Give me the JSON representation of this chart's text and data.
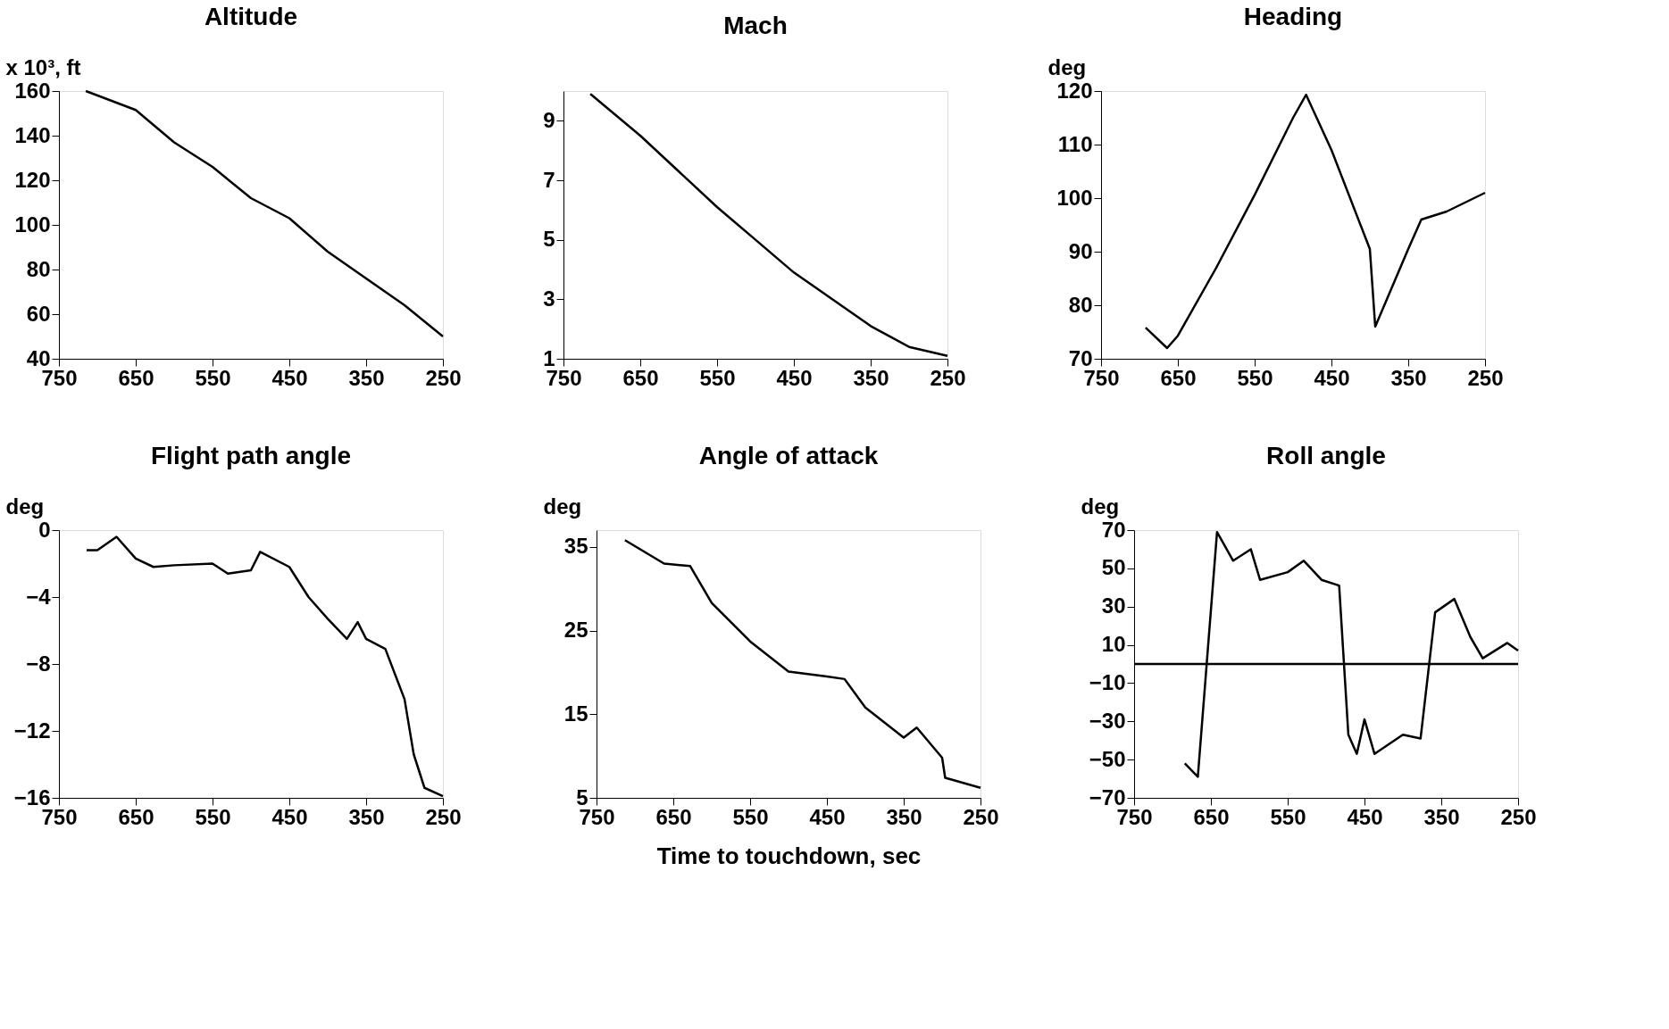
{
  "chart_data": [
    {
      "type": "line",
      "title": "Altitude",
      "ylabel": "x 10³, ft",
      "xlim": [
        750,
        250
      ],
      "xticks": [
        750,
        650,
        550,
        450,
        350,
        250
      ],
      "ylim": [
        40,
        160
      ],
      "yticks": [
        40,
        60,
        80,
        100,
        120,
        140,
        160
      ],
      "grid": false,
      "series": [
        {
          "color": "#000000",
          "x": [
            715,
            650,
            600,
            550,
            500,
            450,
            400,
            350,
            300,
            250
          ],
          "values": [
            160,
            151.5,
            137,
            126,
            112,
            103,
            88,
            76,
            64,
            50
          ]
        }
      ]
    },
    {
      "type": "line",
      "title": "Mach",
      "xlim": [
        750,
        250
      ],
      "xticks": [
        750,
        650,
        550,
        450,
        350,
        250
      ],
      "ylim": [
        1,
        10
      ],
      "yticks": [
        1,
        3,
        5,
        7,
        9
      ],
      "grid": false,
      "series": [
        {
          "color": "#000000",
          "x": [
            715,
            650,
            600,
            550,
            500,
            450,
            400,
            350,
            300,
            250
          ],
          "values": [
            9.9,
            8.5,
            7.3,
            6.1,
            5.0,
            3.9,
            3.0,
            2.1,
            1.4,
            1.1
          ]
        }
      ]
    },
    {
      "type": "line",
      "title": "Heading",
      "ylabel": "deg",
      "xlim": [
        750,
        250
      ],
      "xticks": [
        750,
        650,
        550,
        450,
        350,
        250
      ],
      "ylim": [
        70,
        120
      ],
      "yticks": [
        70,
        80,
        90,
        100,
        110,
        120
      ],
      "grid": false,
      "series": [
        {
          "color": "#000000",
          "x": [
            692,
            664,
            650,
            600,
            550,
            500,
            483,
            450,
            400,
            393,
            350,
            333,
            300,
            250
          ],
          "values": [
            75.8,
            72,
            74.3,
            87,
            100.6,
            115,
            119.3,
            109,
            90.5,
            76,
            90.5,
            96,
            97.5,
            101
          ]
        }
      ]
    },
    {
      "type": "line",
      "title": "Flight path angle",
      "ylabel": "deg",
      "xlim": [
        750,
        250
      ],
      "xticks": [
        750,
        650,
        550,
        450,
        350,
        250
      ],
      "ylim": [
        -16,
        0
      ],
      "yticks": [
        -16,
        -12,
        -8,
        -4,
        0
      ],
      "grid": false,
      "series": [
        {
          "color": "#000000",
          "x": [
            714,
            700,
            675,
            650,
            627,
            600,
            550,
            530,
            500,
            488,
            450,
            425,
            400,
            375,
            361,
            350,
            325,
            300,
            288,
            274,
            250
          ],
          "values": [
            -1.2,
            -1.2,
            -0.4,
            -1.7,
            -2.2,
            -2.1,
            -2.0,
            -2.6,
            -2.4,
            -1.3,
            -2.2,
            -4,
            -5.3,
            -6.5,
            -5.5,
            -6.5,
            -7.1,
            -10.1,
            -13.4,
            -15.4,
            -15.9
          ]
        }
      ]
    },
    {
      "type": "line",
      "title": "Angle of attack",
      "ylabel": "deg",
      "xlabel": "Time to touchdown, sec",
      "xlim": [
        750,
        250
      ],
      "xticks": [
        750,
        650,
        550,
        450,
        350,
        250
      ],
      "ylim": [
        5,
        37
      ],
      "yticks": [
        5,
        15,
        25,
        35
      ],
      "grid": false,
      "series": [
        {
          "color": "#000000",
          "x": [
            713,
            662,
            628,
            600,
            550,
            500,
            450,
            427,
            400,
            350,
            333,
            300,
            296,
            250
          ],
          "values": [
            35.8,
            33,
            32.7,
            28.3,
            23.7,
            20.1,
            19.5,
            19.2,
            15.8,
            12.2,
            13.4,
            9.8,
            7.4,
            6.2
          ]
        }
      ]
    },
    {
      "type": "line",
      "title": "Roll angle",
      "ylabel": "deg",
      "xlim": [
        750,
        250
      ],
      "xticks": [
        750,
        650,
        550,
        450,
        350,
        250
      ],
      "ylim": [
        -70,
        70
      ],
      "yticks": [
        -70,
        -50,
        -30,
        -10,
        10,
        30,
        50,
        70
      ],
      "grid": false,
      "ref_lines": [
        {
          "axis": "y",
          "value": 0,
          "color": "#000000"
        }
      ],
      "series": [
        {
          "color": "#000000",
          "x": [
            684,
            667,
            642,
            621,
            598,
            586,
            550,
            529,
            506,
            483,
            471,
            460,
            450,
            437,
            400,
            377,
            358,
            333,
            312,
            296,
            264,
            250
          ],
          "values": [
            -52,
            -59,
            69,
            54,
            60,
            44,
            48,
            54,
            44,
            41,
            -37,
            -47,
            -29,
            -47,
            -37,
            -39,
            27,
            34,
            14,
            3,
            11,
            7
          ]
        }
      ]
    }
  ]
}
